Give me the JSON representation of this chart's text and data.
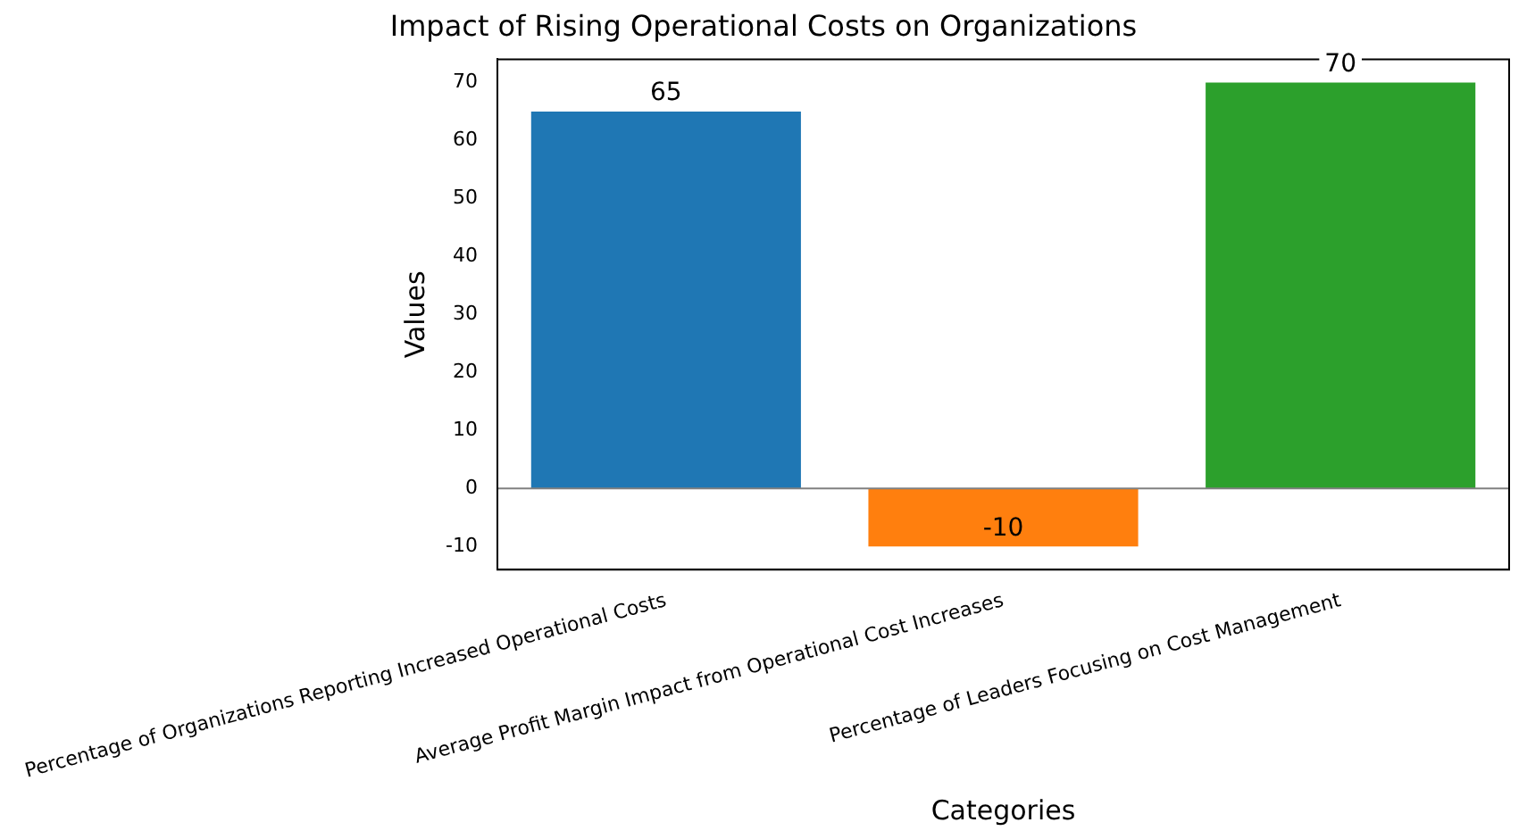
{
  "chart_data": {
    "type": "bar",
    "title": "Impact of Rising Operational Costs on Organizations",
    "xlabel": "Categories",
    "ylabel": "Values",
    "categories": [
      "Percentage of Organizations Reporting Increased Operational Costs",
      "Average Profit Margin Impact from Operational Cost Increases",
      "Percentage of Leaders Focusing on Cost Management"
    ],
    "values": [
      65,
      -10,
      70
    ],
    "colors": [
      "#1f77b4",
      "#ff7f0e",
      "#2ca02c"
    ],
    "ylim": [
      -14,
      74
    ],
    "yticks": [
      -10,
      0,
      10,
      20,
      30,
      40,
      50,
      60,
      70
    ],
    "ref_lines": [
      {
        "axis": "y",
        "value": 0,
        "color": "#808080"
      }
    ],
    "data_labels": true,
    "legend": false
  }
}
